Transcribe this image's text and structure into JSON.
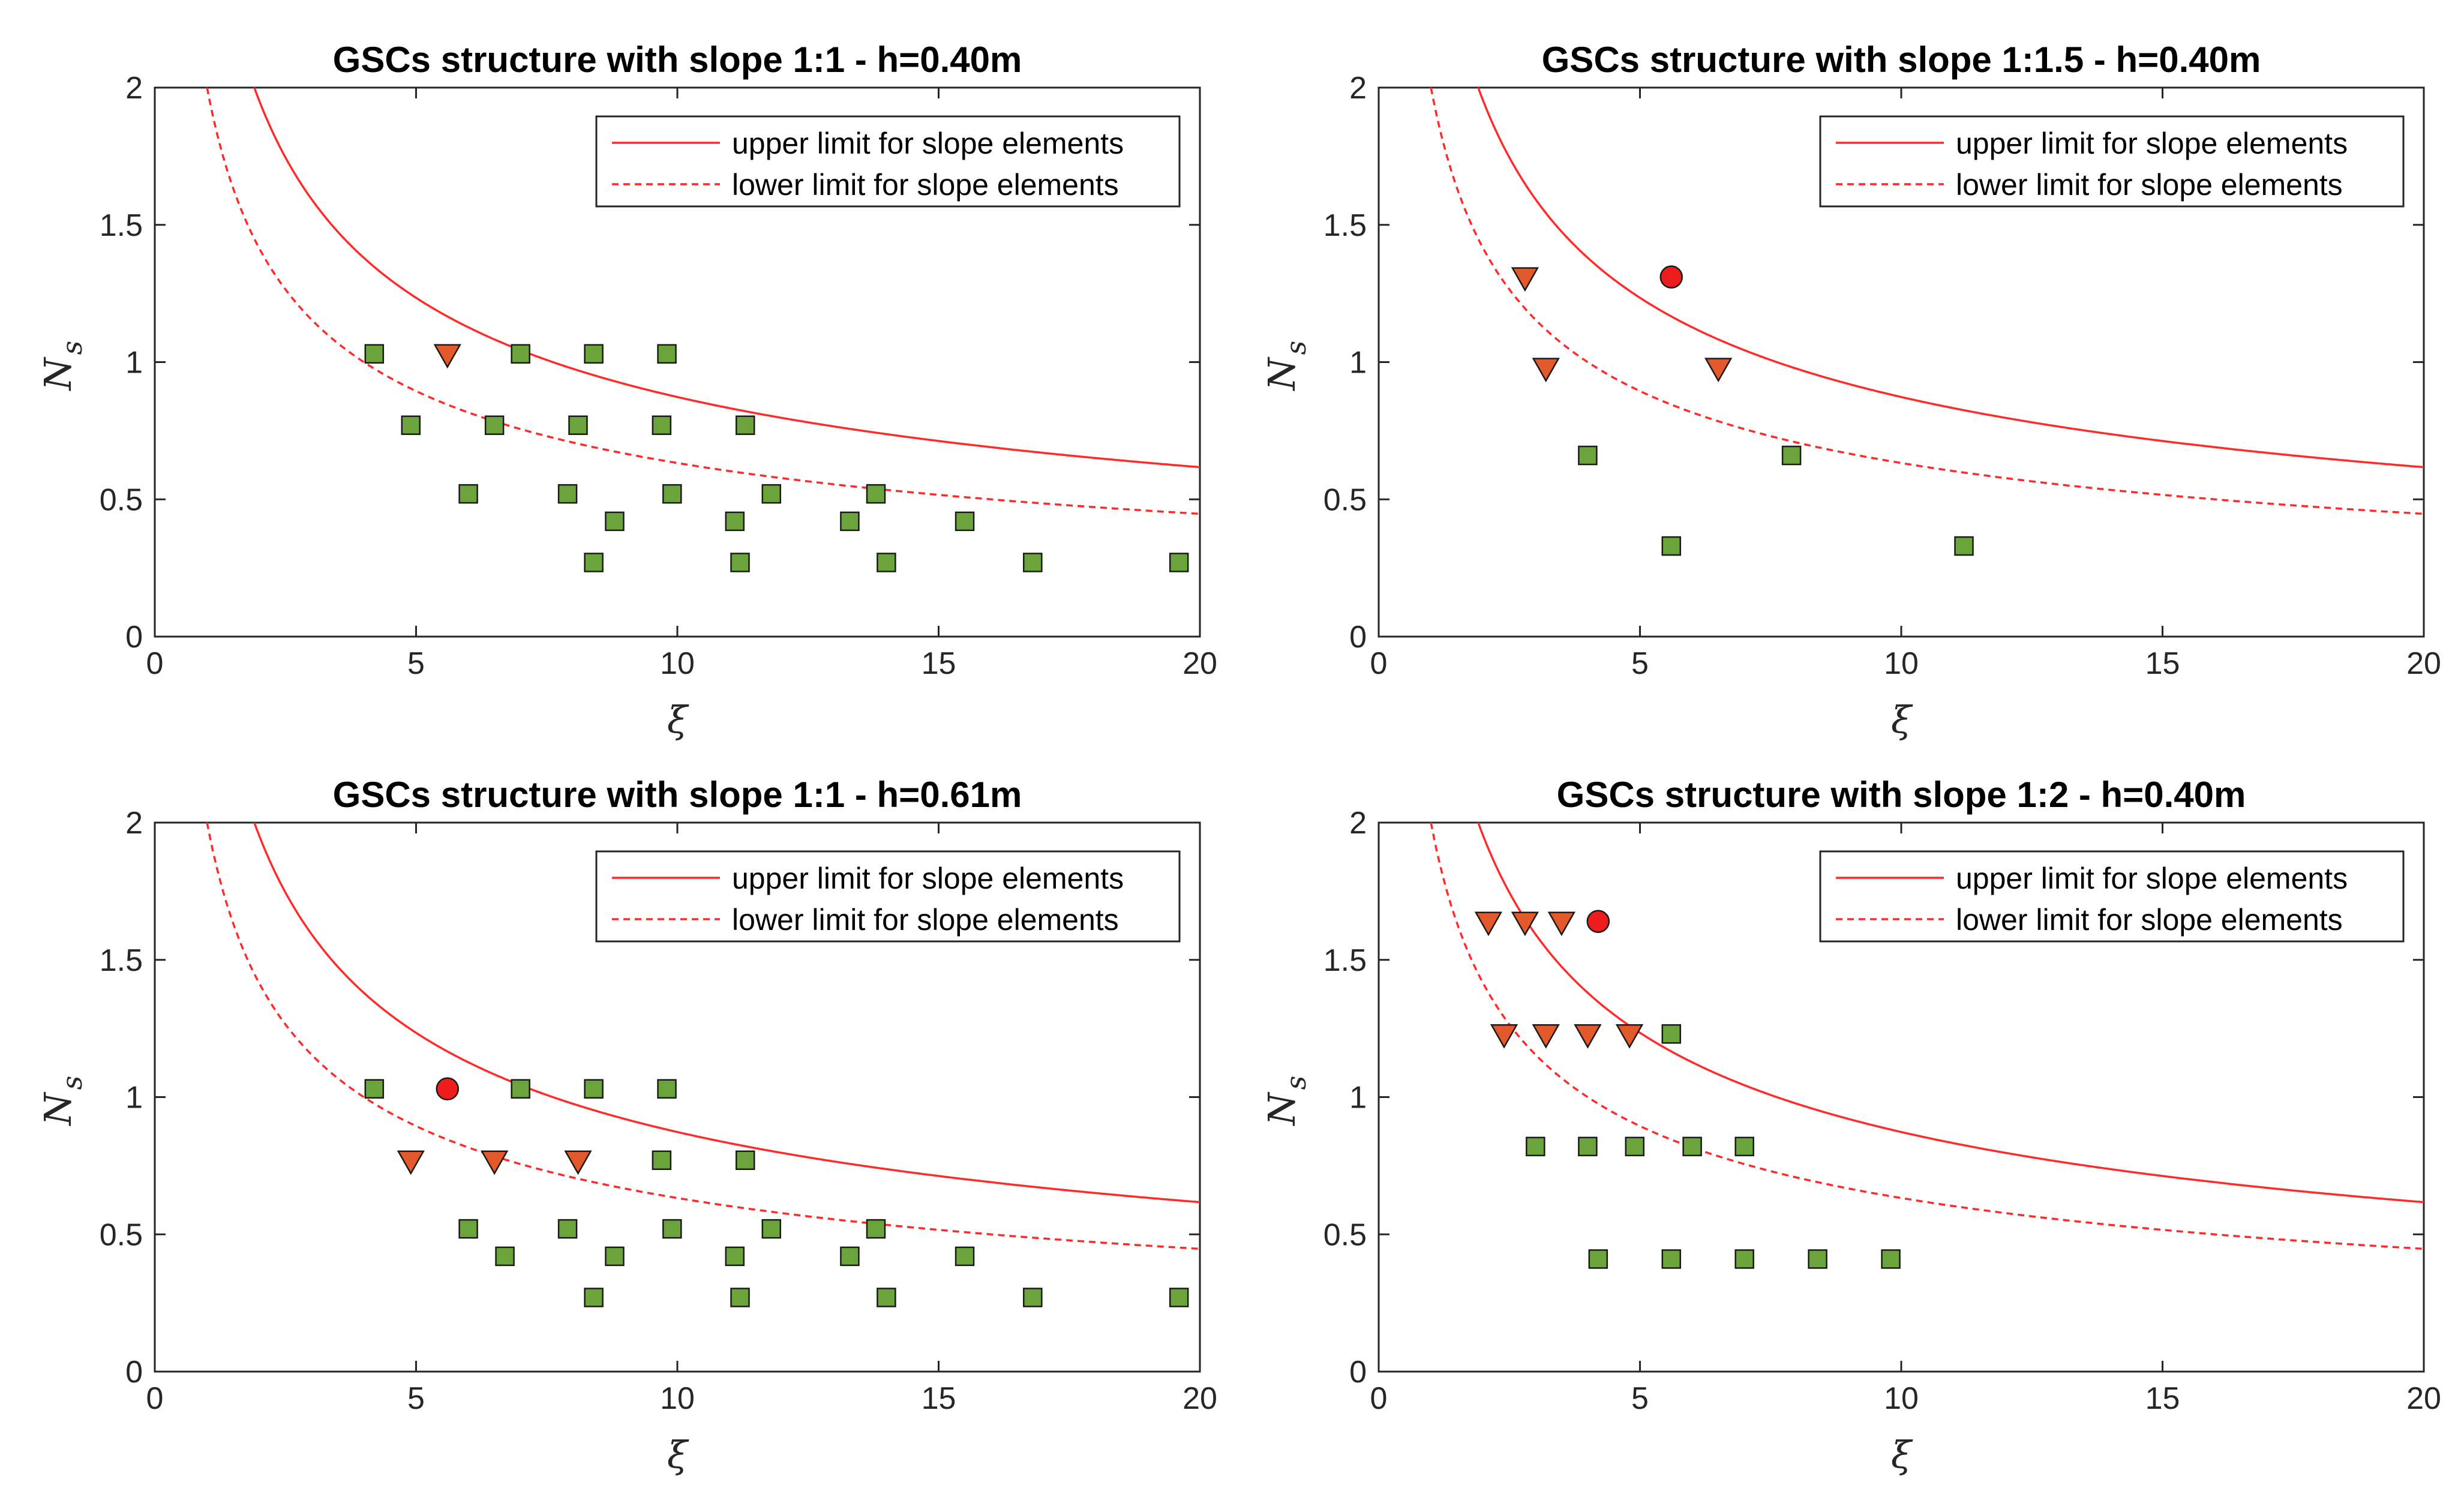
{
  "chart_data": [
    {
      "type": "scatter",
      "title": "GSCs structure with slope 1:1 - h=0.40m",
      "xlabel": "ξ",
      "ylabel": "N",
      "ylabel_sub": "s",
      "xlim": [
        0,
        20
      ],
      "ylim": [
        0,
        2
      ],
      "xticks": [
        "0",
        "5",
        "10",
        "15",
        "20"
      ],
      "yticks": [
        "0",
        "0.5",
        "1",
        "1.5",
        "2"
      ],
      "legend": [
        "upper limit for slope elements",
        "lower limit for slope elements"
      ],
      "legend_position": "top-right",
      "grid": false,
      "green_squares": [
        [
          4.2,
          1.03
        ],
        [
          7.0,
          1.03
        ],
        [
          8.4,
          1.03
        ],
        [
          9.8,
          1.03
        ],
        [
          4.9,
          0.77
        ],
        [
          6.5,
          0.77
        ],
        [
          8.1,
          0.77
        ],
        [
          9.7,
          0.77
        ],
        [
          11.3,
          0.77
        ],
        [
          6.0,
          0.52
        ],
        [
          7.9,
          0.52
        ],
        [
          9.9,
          0.52
        ],
        [
          11.8,
          0.52
        ],
        [
          13.8,
          0.52
        ],
        [
          8.8,
          0.42
        ],
        [
          11.1,
          0.42
        ],
        [
          13.3,
          0.42
        ],
        [
          15.5,
          0.42
        ],
        [
          8.4,
          0.27
        ],
        [
          11.2,
          0.27
        ],
        [
          14.0,
          0.27
        ],
        [
          16.8,
          0.27
        ],
        [
          19.6,
          0.27
        ]
      ],
      "orange_triangles": [
        [
          5.6,
          1.03
        ]
      ],
      "red_circles": []
    },
    {
      "type": "scatter",
      "title": "GSCs structure with slope 1:1.5 - h=0.40m",
      "xlabel": "ξ",
      "ylabel": "N",
      "ylabel_sub": "s",
      "xlim": [
        0,
        20
      ],
      "ylim": [
        0,
        2
      ],
      "xticks": [
        "0",
        "5",
        "10",
        "15",
        "20"
      ],
      "yticks": [
        "0",
        "0.5",
        "1",
        "1.5",
        "2"
      ],
      "legend": [
        "upper limit for slope elements",
        "lower limit for slope elements"
      ],
      "legend_position": "top-right",
      "grid": false,
      "green_squares": [
        [
          4.0,
          0.66
        ],
        [
          7.9,
          0.66
        ],
        [
          5.6,
          0.33
        ],
        [
          11.2,
          0.33
        ]
      ],
      "orange_triangles": [
        [
          2.8,
          1.31
        ],
        [
          3.2,
          0.98
        ],
        [
          6.5,
          0.98
        ]
      ],
      "red_circles": [
        [
          5.6,
          1.31
        ]
      ]
    },
    {
      "type": "scatter",
      "title": "GSCs structure with slope 1:1 - h=0.61m",
      "xlabel": "ξ",
      "ylabel": "N",
      "ylabel_sub": "s",
      "xlim": [
        0,
        20
      ],
      "ylim": [
        0,
        2
      ],
      "xticks": [
        "0",
        "5",
        "10",
        "15",
        "20"
      ],
      "yticks": [
        "0",
        "0.5",
        "1",
        "1.5",
        "2"
      ],
      "legend": [
        "upper limit for slope elements",
        "lower limit for slope elements"
      ],
      "legend_position": "top-right",
      "grid": false,
      "green_squares": [
        [
          4.2,
          1.03
        ],
        [
          7.0,
          1.03
        ],
        [
          8.4,
          1.03
        ],
        [
          9.8,
          1.03
        ],
        [
          9.7,
          0.77
        ],
        [
          11.3,
          0.77
        ],
        [
          6.0,
          0.52
        ],
        [
          7.9,
          0.52
        ],
        [
          9.9,
          0.52
        ],
        [
          11.8,
          0.52
        ],
        [
          13.8,
          0.52
        ],
        [
          6.7,
          0.42
        ],
        [
          8.8,
          0.42
        ],
        [
          11.1,
          0.42
        ],
        [
          13.3,
          0.42
        ],
        [
          15.5,
          0.42
        ],
        [
          8.4,
          0.27
        ],
        [
          11.2,
          0.27
        ],
        [
          14.0,
          0.27
        ],
        [
          16.8,
          0.27
        ],
        [
          19.6,
          0.27
        ]
      ],
      "orange_triangles": [
        [
          4.9,
          0.77
        ],
        [
          6.5,
          0.77
        ],
        [
          8.1,
          0.77
        ]
      ],
      "red_circles": [
        [
          5.6,
          1.03
        ]
      ]
    },
    {
      "type": "scatter",
      "title": "GSCs structure with slope 1:2 - h=0.40m",
      "xlabel": "ξ",
      "ylabel": "N",
      "ylabel_sub": "s",
      "xlim": [
        0,
        20
      ],
      "ylim": [
        0,
        2
      ],
      "xticks": [
        "0",
        "5",
        "10",
        "15",
        "20"
      ],
      "yticks": [
        "0",
        "0.5",
        "1",
        "1.5",
        "2"
      ],
      "legend": [
        "upper limit for slope elements",
        "lower limit for slope elements"
      ],
      "legend_position": "top-right",
      "grid": false,
      "green_squares": [
        [
          5.6,
          1.23
        ],
        [
          3.0,
          0.82
        ],
        [
          4.0,
          0.82
        ],
        [
          4.9,
          0.82
        ],
        [
          6.0,
          0.82
        ],
        [
          7.0,
          0.82
        ],
        [
          4.2,
          0.41
        ],
        [
          5.6,
          0.41
        ],
        [
          7.0,
          0.41
        ],
        [
          8.4,
          0.41
        ],
        [
          9.8,
          0.41
        ]
      ],
      "orange_triangles": [
        [
          2.1,
          1.64
        ],
        [
          2.8,
          1.64
        ],
        [
          3.5,
          1.64
        ],
        [
          2.4,
          1.23
        ],
        [
          3.2,
          1.23
        ],
        [
          4.0,
          1.23
        ],
        [
          4.8,
          1.23
        ]
      ],
      "red_circles": [
        [
          4.2,
          1.64
        ]
      ]
    }
  ],
  "colors": {
    "limit_line": "#ff2a2a",
    "square_fill": "#6aa43a",
    "triangle_fill": "#e2592b",
    "circle_fill": "#ee1c1c",
    "marker_edge": "#1a1a1a",
    "axis": "#262626"
  }
}
